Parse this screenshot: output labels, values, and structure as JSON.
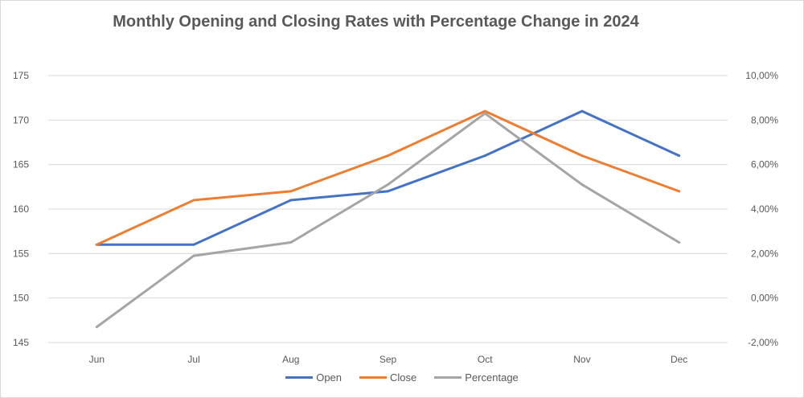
{
  "chart_data": {
    "type": "line",
    "title": "Monthly Opening and Closing Rates with Percentage Change in 2024",
    "categories": [
      "Jun",
      "Jul",
      "Aug",
      "Sep",
      "Oct",
      "Nov",
      "Dec"
    ],
    "y_left": {
      "ylim": [
        145,
        175
      ],
      "ticks": [
        "145",
        "150",
        "155",
        "160",
        "165",
        "170",
        "175"
      ]
    },
    "y_right": {
      "ylim": [
        -2,
        10
      ],
      "ticks": [
        "-2,00%",
        "0,00%",
        "2,00%",
        "4,00%",
        "6,00%",
        "8,00%",
        "10,00%"
      ]
    },
    "series": [
      {
        "name": "Open",
        "axis": "left",
        "color": "#4472C4",
        "values": [
          156,
          156,
          161,
          162,
          166,
          171,
          166
        ]
      },
      {
        "name": "Close",
        "axis": "left",
        "color": "#ED7D31",
        "values": [
          156,
          161,
          162,
          166,
          171,
          166,
          162
        ]
      },
      {
        "name": "Percentage",
        "axis": "right",
        "color": "#A5A5A5",
        "values": [
          -1.3,
          1.9,
          2.5,
          5.1,
          8.3,
          5.1,
          2.5
        ]
      }
    ],
    "grid": true,
    "legend_position": "bottom"
  }
}
